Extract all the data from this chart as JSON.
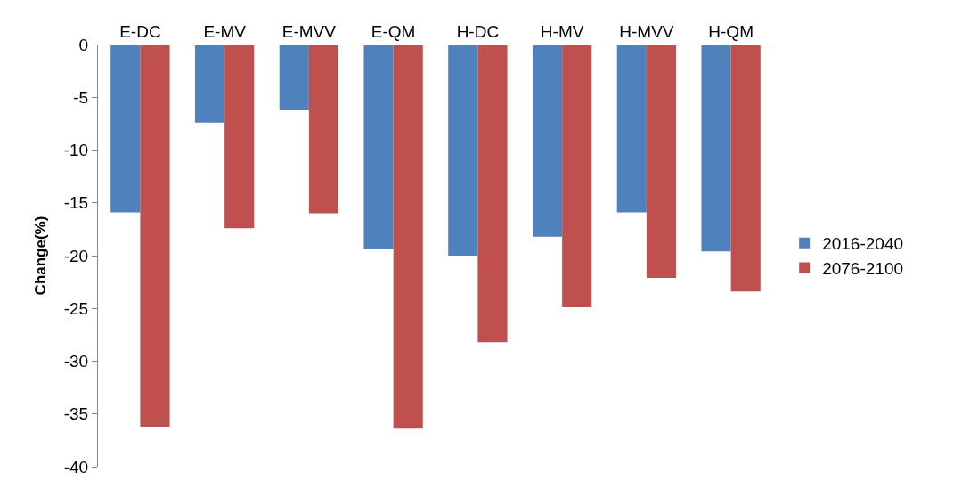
{
  "chart_data": {
    "type": "bar",
    "ylabel": "Change(%)",
    "categories": [
      "E-DC",
      "E-MV",
      "E-MVV",
      "E-QM",
      "H-DC",
      "H-MV",
      "H-MVV",
      "H-QM"
    ],
    "series": [
      {
        "name": "2016-2040",
        "color": "#4f81bd",
        "values": [
          -15.9,
          -7.4,
          -6.2,
          -19.4,
          -20.0,
          -18.2,
          -15.9,
          -19.6
        ]
      },
      {
        "name": "2076-2100",
        "color": "#c0504d",
        "values": [
          -36.2,
          -17.4,
          -16.0,
          -36.4,
          -28.2,
          -24.9,
          -22.1,
          -23.4
        ]
      }
    ],
    "ylim": [
      -40,
      0
    ],
    "yticks": [
      -40,
      -35,
      -30,
      -25,
      -20,
      -15,
      -10,
      -5,
      0
    ],
    "legend": "right"
  }
}
